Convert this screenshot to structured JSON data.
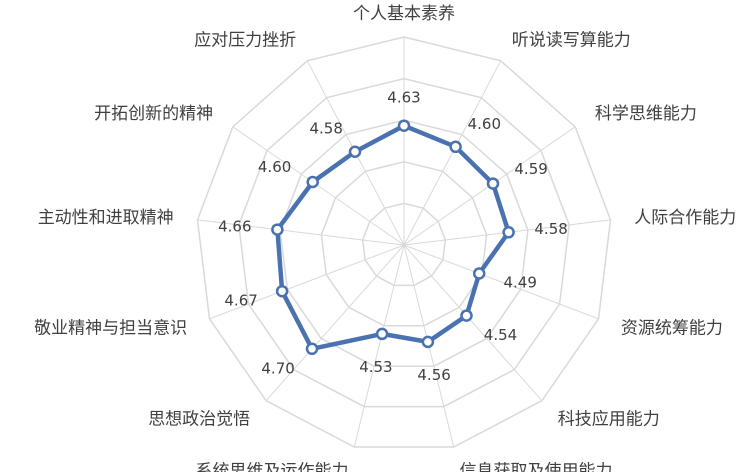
{
  "chart_data": {
    "type": "radar",
    "title": "",
    "categories": [
      "个人基本素养",
      "听说读写算能力",
      "科学思维能力",
      "人际合作能力",
      "资源统筹能力",
      "科技应用能力",
      "信息获取及使用能力",
      "系统思维及运作能力",
      "思想政治觉悟",
      "敬业精神与担当意识",
      "主动性和进取精神",
      "开拓创新的精神",
      "应对压力挫折"
    ],
    "series": [
      {
        "values": [
          4.63,
          4.6,
          4.59,
          4.58,
          4.49,
          4.54,
          4.56,
          4.53,
          4.7,
          4.67,
          4.66,
          4.6,
          4.58
        ],
        "labels": [
          "4.63",
          "4.60",
          "4.59",
          "4.58",
          "4.49",
          "4.54",
          "4.56",
          "4.53",
          "4.70",
          "4.67",
          "4.66",
          "4.60",
          "4.58"
        ]
      }
    ],
    "rlim": [
      4.2,
      4.95
    ],
    "grid_rings": 5,
    "grid": true,
    "legend": "none",
    "colors": {
      "series": "#4a72b0",
      "grid": "#d9d9d9",
      "text": "#404040"
    }
  }
}
